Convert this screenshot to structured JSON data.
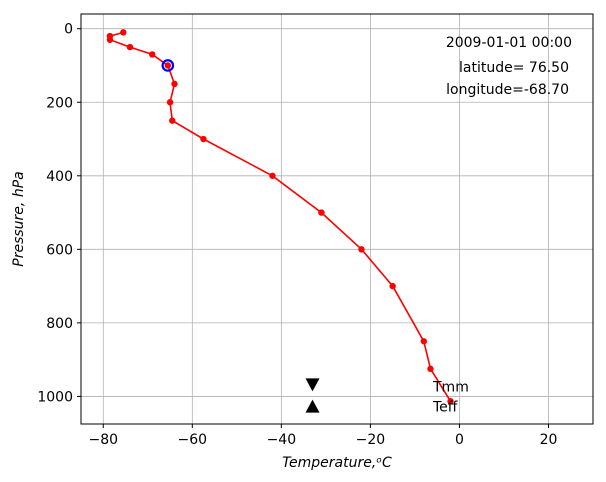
{
  "chart_data": {
    "type": "line",
    "title": "",
    "xlabel": "Temperature,ᵒC",
    "ylabel": "Pressure, hPa",
    "xlim": [
      -85,
      30
    ],
    "ylim": [
      1075,
      -40
    ],
    "y_inverted": true,
    "grid": true,
    "xticks": [
      -80,
      -60,
      -40,
      -20,
      0,
      20
    ],
    "yticks": [
      0,
      200,
      400,
      600,
      800,
      1000
    ],
    "series": [
      {
        "color": "#ff0000",
        "marker": "circle",
        "points": [
          [
            -2,
            1013
          ],
          [
            -6.5,
            925
          ],
          [
            -8,
            850
          ],
          [
            -15,
            700
          ],
          [
            -22,
            600
          ],
          [
            -31,
            500
          ],
          [
            -42,
            400
          ],
          [
            -57.5,
            300
          ],
          [
            -64.5,
            250
          ],
          [
            -65,
            200
          ],
          [
            -64,
            150
          ],
          [
            -65.5,
            100
          ],
          [
            -69,
            70
          ],
          [
            -74,
            50
          ],
          [
            -78.5,
            30
          ],
          [
            -78.5,
            20
          ],
          [
            -75.5,
            10
          ]
        ]
      }
    ],
    "highlight_point": {
      "x": -65.5,
      "y": 100,
      "color": "#0000ff"
    },
    "annotations": {
      "date": "2009-01-01 00:00",
      "latitude": "latitude= 76.50",
      "longitude": "longitude=-68.70"
    },
    "markers": [
      {
        "label": "Tmm",
        "x": -33,
        "y": 970,
        "shape": "triangle-down"
      },
      {
        "label": "Teff",
        "x": -33,
        "y": 1025,
        "shape": "triangle-up"
      }
    ]
  }
}
